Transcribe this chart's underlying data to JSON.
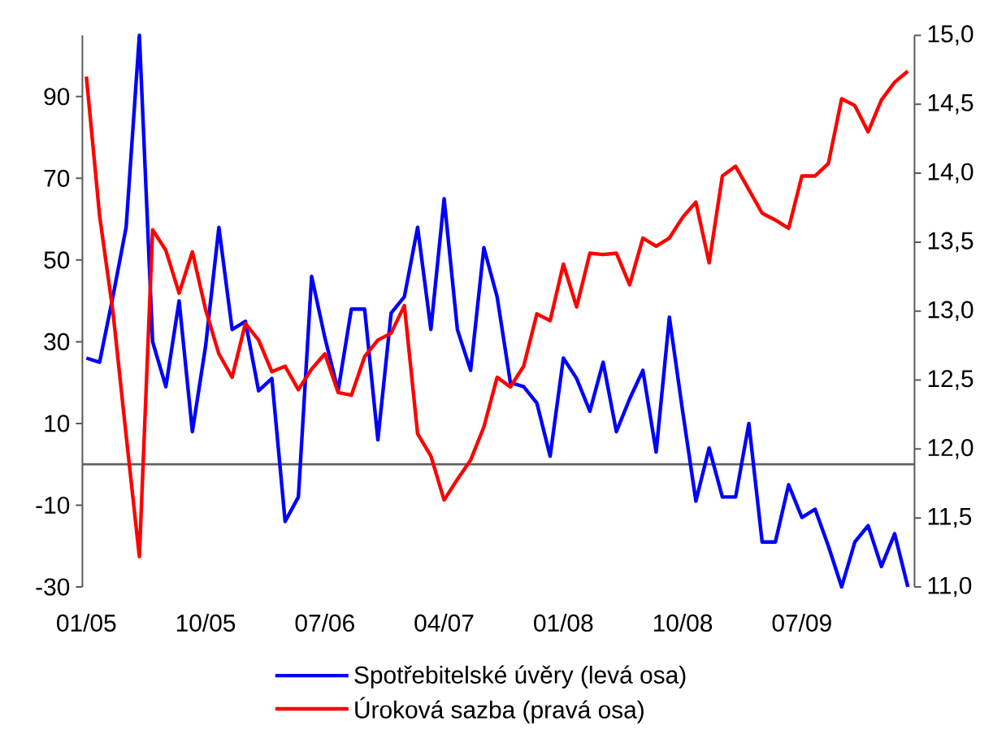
{
  "chart_data": {
    "type": "line",
    "categories": [
      "01/05",
      null,
      null,
      null,
      null,
      null,
      null,
      null,
      null,
      "10/05",
      null,
      null,
      null,
      null,
      null,
      null,
      null,
      null,
      "07/06",
      null,
      null,
      null,
      null,
      null,
      null,
      null,
      null,
      "04/07",
      null,
      null,
      null,
      null,
      null,
      null,
      null,
      null,
      "01/08",
      null,
      null,
      null,
      null,
      null,
      null,
      null,
      null,
      "10/08",
      null,
      null,
      null,
      null,
      null,
      null,
      null,
      null,
      "07/09",
      null,
      null,
      null,
      null,
      null,
      null,
      null,
      null
    ],
    "series": [
      {
        "name": "Spotřebitelské úvěry (levá osa)",
        "color": "#0000ff",
        "values": [
          26,
          25,
          41,
          58,
          105,
          30,
          19,
          40,
          8,
          29,
          58,
          33,
          35,
          18,
          21,
          -14,
          -8,
          46,
          31,
          18,
          38,
          38,
          6,
          37,
          41,
          58,
          33,
          65,
          33,
          23,
          53,
          41,
          20,
          19,
          15,
          2,
          26,
          21,
          13,
          25,
          8,
          16,
          23,
          3,
          36,
          13,
          -9,
          4,
          -8,
          -8,
          10,
          -19,
          -19,
          -5,
          -13,
          -11,
          -20,
          -30,
          -19,
          -15,
          -25,
          -17,
          -30
        ]
      },
      {
        "name": "Úroková sazba (pravá osa)",
        "color": "#ff0000",
        "axis": "y2",
        "values": [
          14.7,
          13.69,
          13.0,
          12.1,
          11.22,
          13.59,
          13.44,
          13.13,
          13.43,
          13.01,
          12.69,
          12.52,
          12.91,
          12.79,
          12.56,
          12.6,
          12.43,
          12.58,
          12.69,
          12.41,
          12.39,
          12.67,
          12.79,
          12.84,
          13.04,
          12.11,
          11.95,
          11.63,
          11.78,
          11.92,
          12.16,
          12.52,
          12.45,
          12.6,
          12.98,
          12.93,
          13.34,
          13.03,
          13.42,
          13.41,
          13.42,
          13.19,
          13.53,
          13.47,
          13.53,
          13.68,
          13.79,
          13.35,
          13.98,
          14.05,
          13.88,
          13.71,
          13.66,
          13.6,
          13.98,
          13.98,
          14.07,
          14.54,
          14.49,
          14.3,
          14.53,
          14.66,
          14.74
        ]
      }
    ],
    "ylim": [
      -30,
      105
    ],
    "yticks": [
      -30,
      -10,
      10,
      30,
      50,
      70,
      90
    ],
    "y2lim": [
      11,
      15
    ],
    "y2ticks": [
      {
        "value": 11,
        "label": "11,0"
      },
      {
        "value": 11.5,
        "label": "11,5"
      },
      {
        "value": 12,
        "label": "12,0"
      },
      {
        "value": 12.5,
        "label": "12,5"
      },
      {
        "value": 13,
        "label": "13,0"
      },
      {
        "value": 13.5,
        "label": "13,5"
      },
      {
        "value": 14,
        "label": "14,0"
      },
      {
        "value": 14.5,
        "label": "14,5"
      },
      {
        "value": 15,
        "label": "15,0"
      }
    ],
    "ref_lines": [
      {
        "axis": "y",
        "value": 0,
        "color": "#606060"
      }
    ],
    "legend": "bottom"
  }
}
